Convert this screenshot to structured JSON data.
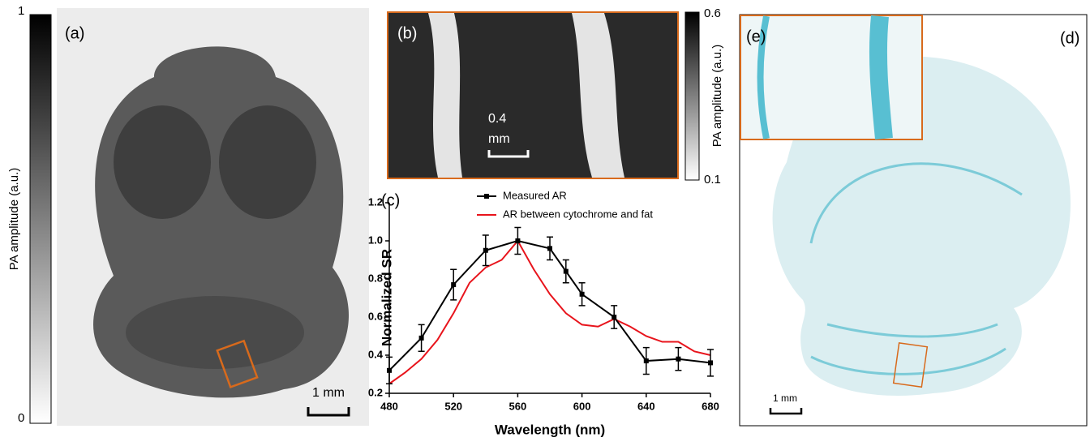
{
  "panels": {
    "a": {
      "label": "(a)",
      "colorbar": {
        "max": "1",
        "min": "0",
        "title": "PA amplitude (a.u.)"
      },
      "scale_bar": "1 mm"
    },
    "b": {
      "label": "(b)",
      "colorbar": {
        "max": "0.6",
        "min": "0.1",
        "title": "PA amplitude (a.u.)"
      },
      "scale_bar": [
        "0.4",
        "mm"
      ]
    },
    "d": {
      "label": "(d)",
      "scale_bar": "1 mm"
    },
    "e": {
      "label": "(e)"
    }
  },
  "chart_data": {
    "type": "line",
    "panel_label": "(c)",
    "x_label": "Wavelength (nm)",
    "y_label": "Normalized SR",
    "xlim": [
      480,
      680
    ],
    "xticks": [
      480,
      520,
      560,
      600,
      640,
      680
    ],
    "ylim": [
      0.2,
      1.2
    ],
    "yticks": [
      0.2,
      0.4,
      0.6,
      0.8,
      {
        "value": 1,
        "label": "1.0"
      },
      1.2
    ],
    "series": [
      {
        "name": "Measured AR",
        "color": "#000000",
        "x": [
          480,
          500,
          520,
          540,
          560,
          580,
          590,
          600,
          620,
          640,
          660,
          680
        ],
        "values": [
          0.32,
          0.49,
          0.77,
          0.95,
          1.0,
          0.96,
          0.84,
          0.72,
          0.6,
          0.37,
          0.38,
          0.36
        ],
        "errors": [
          0.07,
          0.07,
          0.08,
          0.08,
          0.07,
          0.06,
          0.06,
          0.06,
          0.06,
          0.07,
          0.06,
          0.07
        ]
      },
      {
        "name": "AR between cytochrome and fat",
        "color": "#e8141c",
        "x": [
          480,
          490,
          500,
          510,
          520,
          530,
          540,
          550,
          560,
          570,
          580,
          590,
          600,
          610,
          620,
          630,
          640,
          650,
          660,
          670,
          680
        ],
        "values": [
          0.25,
          0.31,
          0.38,
          0.48,
          0.62,
          0.78,
          0.86,
          0.9,
          1.0,
          0.85,
          0.72,
          0.62,
          0.56,
          0.55,
          0.59,
          0.55,
          0.5,
          0.47,
          0.47,
          0.42,
          0.4
        ]
      }
    ]
  }
}
